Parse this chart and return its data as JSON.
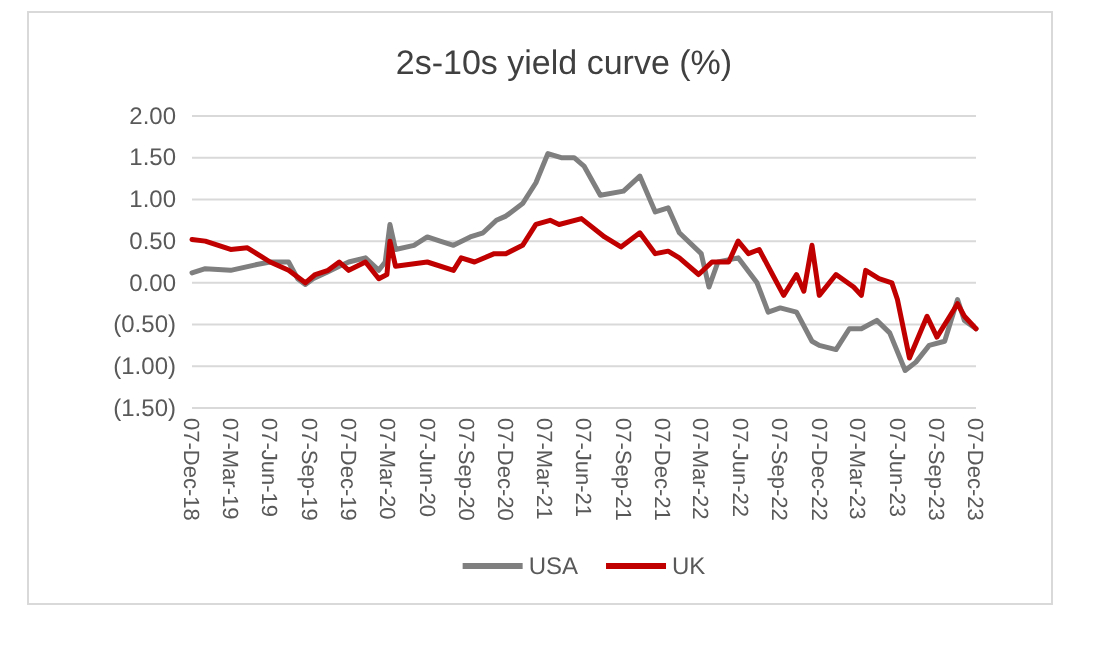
{
  "chart_data": {
    "type": "line",
    "title": "2s-10s yield curve (%)",
    "xlim": [
      "2018-12-07",
      "2023-12-07"
    ],
    "xticks": [
      {
        "value": "2018-12-07",
        "label": "07-Dec-18"
      },
      {
        "value": "2019-03-07",
        "label": "07-Mar-19"
      },
      {
        "value": "2019-06-07",
        "label": "07-Jun-19"
      },
      {
        "value": "2019-09-07",
        "label": "07-Sep-19"
      },
      {
        "value": "2019-12-07",
        "label": "07-Dec-19"
      },
      {
        "value": "2020-03-07",
        "label": "07-Mar-20"
      },
      {
        "value": "2020-06-07",
        "label": "07-Jun-20"
      },
      {
        "value": "2020-09-07",
        "label": "07-Sep-20"
      },
      {
        "value": "2020-12-07",
        "label": "07-Dec-20"
      },
      {
        "value": "2021-03-07",
        "label": "07-Mar-21"
      },
      {
        "value": "2021-06-07",
        "label": "07-Jun-21"
      },
      {
        "value": "2021-09-07",
        "label": "07-Sep-21"
      },
      {
        "value": "2021-12-07",
        "label": "07-Dec-21"
      },
      {
        "value": "2022-03-07",
        "label": "07-Mar-22"
      },
      {
        "value": "2022-06-07",
        "label": "07-Jun-22"
      },
      {
        "value": "2022-09-07",
        "label": "07-Sep-22"
      },
      {
        "value": "2022-12-07",
        "label": "07-Dec-22"
      },
      {
        "value": "2023-03-07",
        "label": "07-Mar-23"
      },
      {
        "value": "2023-06-07",
        "label": "07-Jun-23"
      },
      {
        "value": "2023-09-07",
        "label": "07-Sep-23"
      },
      {
        "value": "2023-12-07",
        "label": "07-Dec-23"
      }
    ],
    "ylim": [
      -1.5,
      2.0
    ],
    "yticks": [
      {
        "value": -1.5,
        "label": "(1.50)"
      },
      {
        "value": -1.0,
        "label": "(1.00)"
      },
      {
        "value": -0.5,
        "label": "(0.50)"
      },
      {
        "value": 0,
        "label": "0.00"
      },
      {
        "value": 0.5,
        "label": "0.50"
      },
      {
        "value": 1.0,
        "label": "1.00"
      },
      {
        "value": 1.5,
        "label": "1.50"
      },
      {
        "value": 2.0,
        "label": "2.00"
      }
    ],
    "grid": "y",
    "legend": "bottom",
    "series": [
      {
        "name": "USA",
        "color": "#7f7f7f",
        "x": [
          "2018-12-07",
          "2019-01-07",
          "2019-03-07",
          "2019-05-07",
          "2019-06-07",
          "2019-07-20",
          "2019-08-10",
          "2019-08-28",
          "2019-09-15",
          "2019-10-15",
          "2019-11-15",
          "2019-12-07",
          "2020-01-15",
          "2020-02-15",
          "2020-03-01",
          "2020-03-12",
          "2020-03-25",
          "2020-05-07",
          "2020-06-07",
          "2020-07-07",
          "2020-08-07",
          "2020-09-15",
          "2020-10-15",
          "2020-11-15",
          "2020-12-07",
          "2021-01-15",
          "2021-02-15",
          "2021-03-15",
          "2021-04-15",
          "2021-05-15",
          "2021-06-07",
          "2021-07-15",
          "2021-09-07",
          "2021-10-15",
          "2021-11-20",
          "2021-12-20",
          "2022-01-15",
          "2022-03-07",
          "2022-03-25",
          "2022-04-15",
          "2022-06-01",
          "2022-07-15",
          "2022-08-10",
          "2022-09-07",
          "2022-10-15",
          "2022-11-20",
          "2022-12-07",
          "2023-01-15",
          "2023-02-15",
          "2023-03-15",
          "2023-04-20",
          "2023-05-20",
          "2023-06-25",
          "2023-07-20",
          "2023-08-20",
          "2023-09-25",
          "2023-10-25",
          "2023-11-10",
          "2023-12-07"
        ],
        "values": [
          0.12,
          0.17,
          0.15,
          0.22,
          0.25,
          0.25,
          0.05,
          -0.02,
          0.05,
          0.12,
          0.2,
          0.25,
          0.3,
          0.15,
          0.25,
          0.7,
          0.4,
          0.45,
          0.55,
          0.5,
          0.45,
          0.55,
          0.6,
          0.75,
          0.8,
          0.95,
          1.2,
          1.55,
          1.5,
          1.5,
          1.4,
          1.05,
          1.1,
          1.28,
          0.85,
          0.9,
          0.6,
          0.35,
          -0.05,
          0.25,
          0.3,
          0.0,
          -0.35,
          -0.3,
          -0.35,
          -0.7,
          -0.75,
          -0.8,
          -0.55,
          -0.55,
          -0.45,
          -0.6,
          -1.05,
          -0.95,
          -0.75,
          -0.7,
          -0.2,
          -0.45,
          -0.55
        ]
      },
      {
        "name": "UK",
        "color": "#c00000",
        "x": [
          "2018-12-07",
          "2019-01-07",
          "2019-03-07",
          "2019-04-15",
          "2019-06-07",
          "2019-07-20",
          "2019-08-28",
          "2019-09-20",
          "2019-10-20",
          "2019-11-15",
          "2019-12-07",
          "2020-01-15",
          "2020-02-15",
          "2020-03-05",
          "2020-03-12",
          "2020-03-25",
          "2020-06-07",
          "2020-08-07",
          "2020-08-25",
          "2020-09-25",
          "2020-11-10",
          "2020-12-07",
          "2021-01-15",
          "2021-02-15",
          "2021-03-20",
          "2021-04-10",
          "2021-06-01",
          "2021-07-25",
          "2021-09-01",
          "2021-10-15",
          "2021-11-20",
          "2021-12-20",
          "2022-01-15",
          "2022-03-01",
          "2022-04-01",
          "2022-05-10",
          "2022-06-01",
          "2022-06-25",
          "2022-07-20",
          "2022-08-20",
          "2022-09-15",
          "2022-10-15",
          "2022-11-01",
          "2022-11-20",
          "2022-12-07",
          "2023-01-15",
          "2023-02-25",
          "2023-03-15",
          "2023-03-25",
          "2023-04-25",
          "2023-05-25",
          "2023-06-07",
          "2023-07-05",
          "2023-08-15",
          "2023-09-07",
          "2023-10-25",
          "2023-11-10",
          "2023-12-07"
        ],
        "values": [
          0.52,
          0.5,
          0.4,
          0.42,
          0.25,
          0.15,
          0.0,
          0.1,
          0.15,
          0.25,
          0.15,
          0.25,
          0.05,
          0.1,
          0.5,
          0.2,
          0.25,
          0.15,
          0.3,
          0.25,
          0.35,
          0.35,
          0.45,
          0.7,
          0.75,
          0.7,
          0.77,
          0.55,
          0.43,
          0.6,
          0.35,
          0.38,
          0.3,
          0.1,
          0.25,
          0.25,
          0.5,
          0.35,
          0.4,
          0.1,
          -0.15,
          0.1,
          -0.1,
          0.45,
          -0.15,
          0.1,
          -0.05,
          -0.15,
          0.15,
          0.05,
          0.0,
          -0.2,
          -0.9,
          -0.4,
          -0.65,
          -0.25,
          -0.4,
          -0.55
        ]
      }
    ]
  }
}
